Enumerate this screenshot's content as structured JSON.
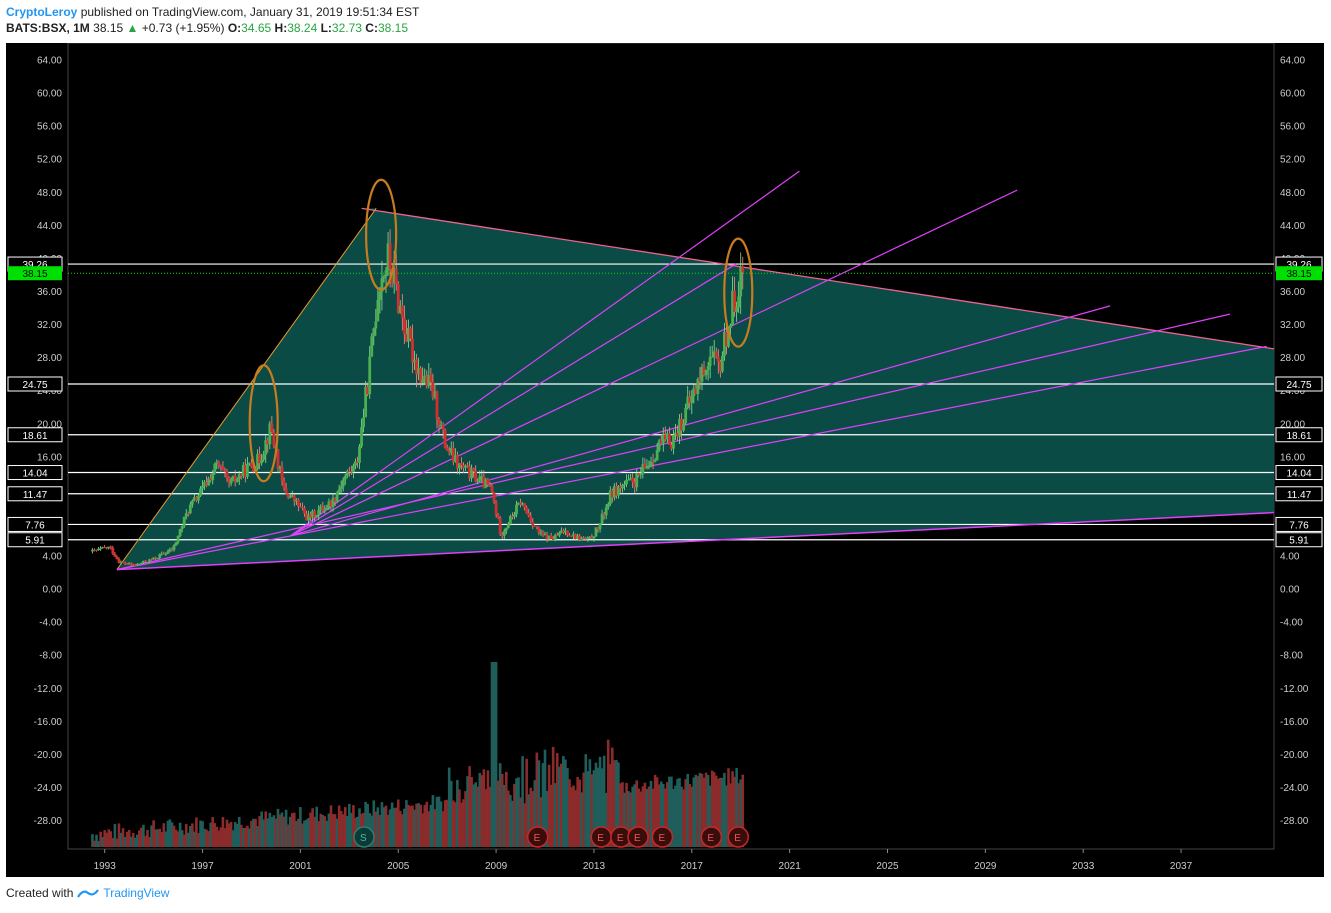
{
  "header": {
    "author": "CryptoLeroy",
    "published": "published on TradingView.com, January 31, 2019 19:51:34 EST",
    "symbol": "BATS:BSX, 1M",
    "last": "38.15",
    "change": "+0.73 (+1.95%)",
    "open_label": "O:",
    "open": "34.65",
    "high_label": "H:",
    "high": "38.24",
    "low_label": "L:",
    "low": "32.73",
    "close_label": "C:",
    "close": "38.15"
  },
  "footer": {
    "created_with": "Created with",
    "brand": "TradingView"
  },
  "colors": {
    "background": "#000000",
    "up": "#4caf50",
    "down": "#d32f2f",
    "fill": "#0b4f4a",
    "fan_line": "#e040fb",
    "orange": "#c77c1e",
    "price_badge": "#00e000"
  },
  "chart_data": {
    "type": "candlestick",
    "symbol": "BATS:BSX",
    "interval": "1M",
    "y_ticks": [
      "64.00",
      "60.00",
      "56.00",
      "52.00",
      "48.00",
      "44.00",
      "40.00",
      "36.00",
      "32.00",
      "28.00",
      "24.00",
      "20.00",
      "16.00",
      "12.00",
      "8.00",
      "4.00",
      "0.00",
      "-4.00",
      "-8.00",
      "-12.00",
      "-16.00",
      "-20.00",
      "-24.00",
      "-28.00"
    ],
    "x_ticks": [
      "1993",
      "1997",
      "2001",
      "2005",
      "2009",
      "2013",
      "2017",
      "2021",
      "2025",
      "2029",
      "2033",
      "2037"
    ],
    "ylim": [
      -31.5,
      66
    ],
    "xlim": [
      1991.5,
      2040.8
    ],
    "current_price": "38.15",
    "horizontal_levels": [
      "39.26",
      "24.75",
      "18.61",
      "14.04",
      "11.47",
      "7.76",
      "5.91"
    ],
    "price_path": [
      [
        1992.5,
        4.5
      ],
      [
        1993.2,
        5.0
      ],
      [
        1993.6,
        3.2
      ],
      [
        1994.2,
        2.8
      ],
      [
        1995.0,
        3.6
      ],
      [
        1995.8,
        4.8
      ],
      [
        1996.4,
        9.5
      ],
      [
        1997.0,
        12.0
      ],
      [
        1997.6,
        15.0
      ],
      [
        1998.1,
        12.5
      ],
      [
        1998.8,
        14.5
      ],
      [
        1999.3,
        15.5
      ],
      [
        1999.8,
        19.5
      ],
      [
        2000.3,
        12.0
      ],
      [
        2000.8,
        10.5
      ],
      [
        2001.3,
        8.5
      ],
      [
        2001.8,
        9.5
      ],
      [
        2002.3,
        10.5
      ],
      [
        2002.8,
        13.5
      ],
      [
        2003.3,
        15.0
      ],
      [
        2003.8,
        26.0
      ],
      [
        2004.2,
        37.0
      ],
      [
        2004.6,
        40.0
      ],
      [
        2005.0,
        35.0
      ],
      [
        2005.4,
        30.0
      ],
      [
        2005.9,
        26.0
      ],
      [
        2006.4,
        24.0
      ],
      [
        2006.9,
        17.5
      ],
      [
        2007.4,
        15.0
      ],
      [
        2007.9,
        14.0
      ],
      [
        2008.4,
        13.0
      ],
      [
        2008.8,
        12.0
      ],
      [
        2009.2,
        6.5
      ],
      [
        2009.6,
        8.5
      ],
      [
        2010.0,
        10.5
      ],
      [
        2010.4,
        8.5
      ],
      [
        2010.8,
        6.5
      ],
      [
        2011.3,
        6.0
      ],
      [
        2011.8,
        7.0
      ],
      [
        2012.3,
        6.2
      ],
      [
        2012.8,
        5.8
      ],
      [
        2013.2,
        7.5
      ],
      [
        2013.7,
        11.5
      ],
      [
        2014.2,
        12.5
      ],
      [
        2014.7,
        13.0
      ],
      [
        2015.2,
        15.0
      ],
      [
        2015.7,
        17.5
      ],
      [
        2016.2,
        18.0
      ],
      [
        2016.7,
        21.0
      ],
      [
        2017.2,
        24.5
      ],
      [
        2017.7,
        28.0
      ],
      [
        2018.1,
        26.5
      ],
      [
        2018.5,
        32.0
      ],
      [
        2018.9,
        37.0
      ],
      [
        2019.1,
        38.15
      ]
    ],
    "trendlines": {
      "triangle_top": [
        [
          2003.5,
          46.0
        ],
        [
          2040.8,
          29.0
        ]
      ],
      "triangle_left": [
        [
          1993.5,
          2.3
        ],
        [
          2004.1,
          46.0
        ]
      ],
      "triangle_base": [
        [
          1993.5,
          2.3
        ],
        [
          2040.8,
          9.2
        ]
      ],
      "fan_origin_1": [
        1993.5,
        2.3
      ],
      "fan_lines_1": [
        [
          2040.5,
          29.3
        ],
        [
          2039.0,
          33.2
        ]
      ],
      "fan_origin_2": [
        2000.6,
        6.4
      ],
      "fan_lines_2": [
        [
          2021.4,
          50.5
        ],
        [
          2030.3,
          48.2
        ],
        [
          2034.1,
          34.2
        ],
        [
          2018.8,
          39.26
        ]
      ]
    },
    "annotations": [
      {
        "shape": "ellipse",
        "x": 1999.5,
        "y": 20.0
      },
      {
        "shape": "ellipse",
        "x": 2004.3,
        "y": 42.8
      },
      {
        "shape": "ellipse",
        "x": 2018.9,
        "y": 35.8
      }
    ],
    "volume": {
      "x_start": 1992.5,
      "x_end": 2019.1,
      "peak_year": 2008.9,
      "events": [
        {
          "label": "S",
          "x": 2003.6
        },
        {
          "label": "E",
          "x": 2010.7
        },
        {
          "label": "E",
          "x": 2013.3
        },
        {
          "label": "E",
          "x": 2014.1
        },
        {
          "label": "E",
          "x": 2014.8
        },
        {
          "label": "E",
          "x": 2015.8
        },
        {
          "label": "E",
          "x": 2017.8
        },
        {
          "label": "E",
          "x": 2018.9
        }
      ]
    }
  }
}
